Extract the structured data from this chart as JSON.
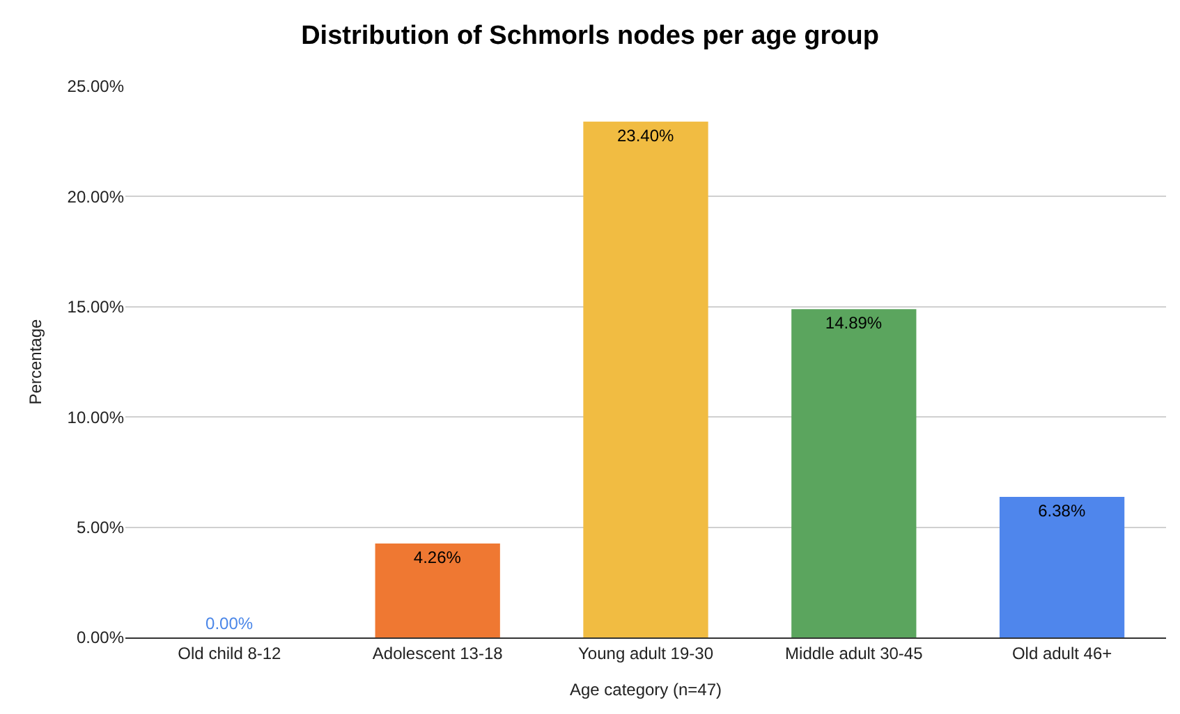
{
  "chart_data": {
    "type": "bar",
    "title": "Distribution of Schmorls nodes per age group",
    "xlabel": "Age category (n=47)",
    "ylabel": "Percentage",
    "categories": [
      "Old child 8-12",
      "Adolescent 13-18",
      "Young adult 19-30",
      "Middle adult 30-45",
      "Old adult 46+"
    ],
    "values": [
      0,
      4.26,
      23.4,
      14.89,
      6.38
    ],
    "value_labels": [
      "0.00%",
      "4.26%",
      "23.40%",
      "14.89%",
      "6.38%"
    ],
    "colors": [
      "#4a86e8",
      "#ef7832",
      "#f1bc42",
      "#5ba55e",
      "#4f86ec"
    ],
    "ylim": [
      0,
      25
    ],
    "yticks": [
      {
        "value": 0,
        "label": "0.00%"
      },
      {
        "value": 5,
        "label": "5.00%"
      },
      {
        "value": 10,
        "label": "10.00%"
      },
      {
        "value": 15,
        "label": "15.00%"
      },
      {
        "value": 20,
        "label": "20.00%"
      },
      {
        "value": 25,
        "label": "25.00%"
      }
    ],
    "grid": "y"
  }
}
